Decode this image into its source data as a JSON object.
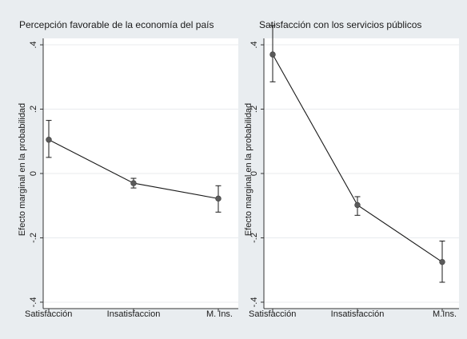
{
  "chart_data": [
    {
      "type": "line",
      "title": "Percepción favorable de la economía del país",
      "ylabel": "Efecto marginal en la probabilidad",
      "xlabel": "",
      "categories": [
        "Satisfacción",
        "Insatisfaccion",
        "M. Ins."
      ],
      "series": [
        {
          "values": [
            0.105,
            -0.03,
            -0.078
          ],
          "ci_low": [
            0.05,
            -0.045,
            -0.12
          ],
          "ci_high": [
            0.165,
            -0.015,
            -0.038
          ]
        }
      ],
      "ylim": [
        -0.42,
        0.42
      ],
      "yticks": [
        -0.4,
        -0.2,
        0,
        0.2,
        0.4
      ],
      "ytick_labels": [
        "-.4",
        "-.2",
        "0",
        ".2",
        ".4"
      ],
      "grid": true
    },
    {
      "type": "line",
      "title": "Satisfacción con los servicios públicos",
      "ylabel": "Efecto marginal en la probabilidad",
      "xlabel": "",
      "categories": [
        "Satisfacción",
        "Insatisfacción",
        "M.Ins."
      ],
      "series": [
        {
          "values": [
            0.37,
            -0.098,
            -0.275
          ],
          "ci_low": [
            0.285,
            -0.13,
            -0.338
          ],
          "ci_high": [
            0.46,
            -0.072,
            -0.21
          ]
        }
      ],
      "ylim": [
        -0.42,
        0.42
      ],
      "yticks": [
        -0.4,
        -0.2,
        0,
        0.2,
        0.4
      ],
      "ytick_labels": [
        "-.4",
        "-.2",
        "0",
        ".2",
        ".4"
      ],
      "grid": true
    }
  ]
}
